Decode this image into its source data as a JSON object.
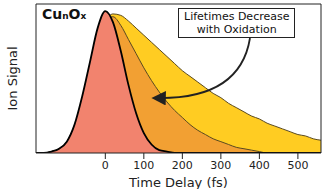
{
  "chart_data": {
    "type": "area",
    "title": "CuₙOₓ",
    "xlabel": "Time Delay (fs)",
    "ylabel": "Ion Signal",
    "annotation": [
      "Lifetimes Decrease",
      "with Oxidation"
    ],
    "x": [
      -180,
      -160,
      -140,
      -120,
      -100,
      -80,
      -60,
      -40,
      -20,
      0,
      20,
      40,
      60,
      80,
      100,
      120,
      140,
      160,
      180,
      200,
      220,
      240,
      260,
      280,
      300,
      320,
      340,
      360,
      380,
      400,
      420,
      440,
      460,
      480,
      500,
      520,
      540,
      560
    ],
    "series": [
      {
        "color": "#ffcc22",
        "values": [
          0,
          0,
          0.01,
          0.03,
          0.08,
          0.19,
          0.38,
          0.6,
          0.8,
          0.93,
          0.98,
          0.97,
          0.93,
          0.88,
          0.83,
          0.78,
          0.73,
          0.68,
          0.63,
          0.58,
          0.54,
          0.5,
          0.46,
          0.42,
          0.39,
          0.35,
          0.32,
          0.29,
          0.26,
          0.24,
          0.21,
          0.19,
          0.17,
          0.15,
          0.13,
          0.12,
          0.1,
          0.09
        ]
      },
      {
        "color": "#f2a033",
        "values": [
          0,
          0,
          0.01,
          0.03,
          0.08,
          0.19,
          0.38,
          0.6,
          0.82,
          0.94,
          0.96,
          0.9,
          0.8,
          0.7,
          0.6,
          0.51,
          0.43,
          0.36,
          0.3,
          0.25,
          0.2,
          0.16,
          0.13,
          0.1,
          0.08,
          0.06,
          0.04,
          0.03,
          0.02,
          0.01,
          0,
          0,
          0,
          0,
          0,
          0,
          0,
          0
        ]
      },
      {
        "color": "#f2836e",
        "values": [
          0,
          0,
          0.01,
          0.03,
          0.08,
          0.2,
          0.4,
          0.64,
          0.88,
          1.0,
          0.92,
          0.72,
          0.48,
          0.28,
          0.14,
          0.06,
          0.02,
          0.01,
          0,
          0,
          0,
          0,
          0,
          0,
          0,
          0,
          0,
          0,
          0,
          0,
          0,
          0,
          0,
          0,
          0,
          0,
          0,
          0
        ]
      }
    ],
    "xlim": [
      -180,
      560
    ],
    "xticks": [
      0,
      100,
      200,
      300,
      400,
      500
    ],
    "ylim": [
      0,
      1.05
    ],
    "tick_labels": "x"
  }
}
